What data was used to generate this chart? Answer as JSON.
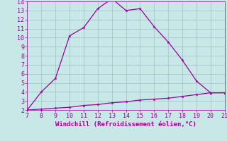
{
  "xlabel": "Windchill (Refroidissement éolien,°C)",
  "line1_x": [
    7,
    8,
    9,
    10,
    11,
    12,
    13,
    14,
    15,
    16,
    17,
    18,
    19,
    20,
    21
  ],
  "line1_y": [
    2.0,
    4.0,
    5.5,
    10.2,
    11.1,
    13.2,
    14.3,
    13.0,
    13.2,
    11.2,
    9.5,
    7.5,
    5.2,
    3.9,
    3.9
  ],
  "line2_x": [
    7,
    8,
    9,
    10,
    11,
    12,
    13,
    14,
    15,
    16,
    17,
    18,
    19,
    20,
    21
  ],
  "line2_y": [
    2.0,
    2.1,
    2.2,
    2.3,
    2.5,
    2.6,
    2.8,
    2.9,
    3.1,
    3.2,
    3.3,
    3.5,
    3.7,
    3.9,
    3.9
  ],
  "line_color": "#990099",
  "bg_color": "#c8e8e8",
  "grid_color": "#aacccc",
  "text_color": "#990099",
  "xlim": [
    7,
    21
  ],
  "ylim": [
    2,
    14
  ],
  "yticks": [
    2,
    3,
    4,
    5,
    6,
    7,
    8,
    9,
    10,
    11,
    12,
    13,
    14
  ],
  "xticks": [
    7,
    8,
    9,
    10,
    11,
    12,
    13,
    14,
    15,
    16,
    17,
    18,
    19,
    20,
    21
  ],
  "tick_fontsize": 6,
  "xlabel_fontsize": 6.5
}
